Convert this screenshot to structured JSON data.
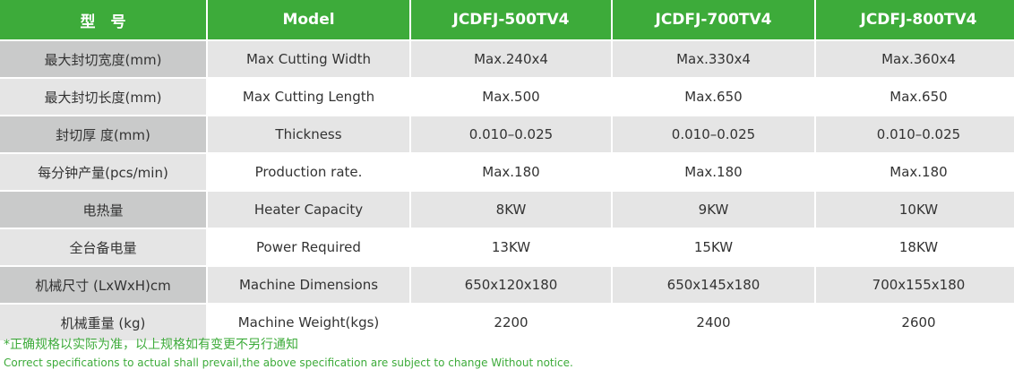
{
  "table": {
    "header": [
      "型　号",
      "Model",
      "JCDFJ-500TV4",
      "JCDFJ-700TV4",
      "JCDFJ-800TV4"
    ],
    "rows": [
      [
        "最大封切宽度(mm)",
        "Max Cutting Width",
        "Max.240x4",
        "Max.330x4",
        "Max.360x4"
      ],
      [
        "最大封切长度(mm)",
        "Max Cutting Length",
        "Max.500",
        "Max.650",
        "Max.650"
      ],
      [
        "封切厚 度(mm)",
        "Thickness",
        "0.010–0.025",
        "0.010–0.025",
        "0.010–0.025"
      ],
      [
        "每分钟产量(pcs/min)",
        "Production rate.",
        "Max.180",
        "Max.180",
        "Max.180"
      ],
      [
        "电热量",
        "Heater Capacity",
        "8KW",
        "9KW",
        "10KW"
      ],
      [
        "全台备电量",
        "Power Required",
        "13KW",
        "15KW",
        "18KW"
      ],
      [
        "机械尺寸 (LxWxH)cm",
        "Machine Dimensions",
        "650x120x180",
        "650x145x180",
        "700x155x180"
      ],
      [
        "机械重量 (kg)",
        "Machine Weight(kgs)",
        "2200",
        "2400",
        "2600"
      ]
    ]
  },
  "footnote": {
    "chinese": "*正确规格以实际为准，以上规格如有变更不另行通知",
    "english": "Correct specifications to actual shall prevail,the above specification are subject to change Without notice."
  }
}
